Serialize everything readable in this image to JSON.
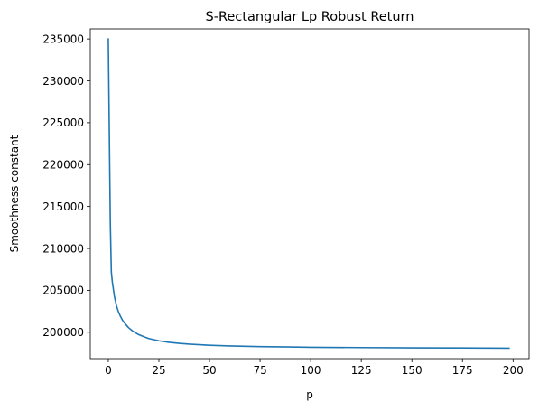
{
  "chart_data": {
    "type": "line",
    "title": "S-Rectangular Lp Robust Return",
    "xlabel": "p",
    "ylabel": "Smoothness constant",
    "xlim": [
      -8.9,
      207.9
    ],
    "ylim": [
      196850,
      236200
    ],
    "xticks": [
      0,
      25,
      50,
      75,
      100,
      125,
      150,
      175,
      200
    ],
    "yticks": [
      200000,
      205000,
      210000,
      215000,
      220000,
      225000,
      230000,
      235000
    ],
    "grid": false,
    "legend": "none",
    "series": [
      {
        "color": "#1f77b4",
        "x": [
          0,
          1,
          1.5,
          2,
          3,
          4,
          5,
          6,
          7,
          8,
          10,
          12,
          15,
          18,
          20,
          25,
          30,
          35,
          40,
          50,
          60,
          75,
          90,
          100,
          125,
          150,
          175,
          198
        ],
        "y": [
          235000,
          213000,
          207200,
          206000,
          204300,
          203200,
          202450,
          201900,
          201450,
          201100,
          200550,
          200150,
          199720,
          199420,
          199250,
          198980,
          198800,
          198680,
          198580,
          198450,
          198370,
          198290,
          198240,
          198210,
          198170,
          198140,
          198120,
          198100
        ]
      }
    ]
  }
}
